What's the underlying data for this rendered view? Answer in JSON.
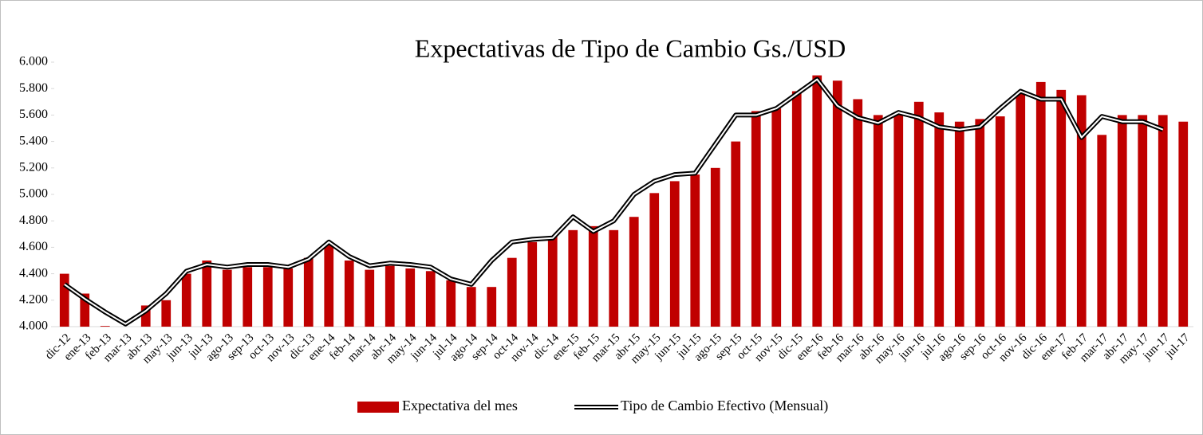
{
  "chart_data": {
    "type": "bar-line",
    "title": "Expectativas de Tipo de Cambio Gs./USD",
    "categories": [
      "dic-12",
      "ene-13",
      "feb-13",
      "mar-13",
      "abr-13",
      "may-13",
      "jun-13",
      "jul-13",
      "ago-13",
      "sep-13",
      "oct-13",
      "nov-13",
      "dic-13",
      "ene-14",
      "feb-14",
      "mar-14",
      "abr-14",
      "may-14",
      "jun-14",
      "jul-14",
      "ago-14",
      "sep-14",
      "oct-14",
      "nov-14",
      "dic-14",
      "ene-15",
      "feb-15",
      "mar-15",
      "abr-15",
      "may-15",
      "jun-15",
      "jul-15",
      "ago-15",
      "sep-15",
      "oct-15",
      "nov-15",
      "dic-15",
      "ene-16",
      "feb-16",
      "mar-16",
      "abr-16",
      "may-16",
      "jun-16",
      "jul-16",
      "ago-16",
      "sep-16",
      "oct-16",
      "nov-16",
      "dic-16",
      "ene-17",
      "feb-17",
      "mar-17",
      "abr-17",
      "may-17",
      "jun-17",
      "jul-17"
    ],
    "series": [
      {
        "name": "Expectativa del mes",
        "type": "bar",
        "color": "#c00000",
        "values": [
          4400,
          4250,
          4005,
          null,
          4160,
          4200,
          4400,
          4500,
          4430,
          4450,
          4450,
          4440,
          4520,
          4630,
          4500,
          4430,
          4460,
          4440,
          4420,
          4350,
          4300,
          4300,
          4520,
          4640,
          4680,
          4730,
          4760,
          4730,
          4830,
          5010,
          5100,
          5150,
          5200,
          5400,
          5630,
          5650,
          5780,
          5900,
          5860,
          5720,
          5600,
          5600,
          5700,
          5620,
          5550,
          5570,
          5590,
          5760,
          5850,
          5790,
          5750,
          5450,
          5600,
          5600,
          5600,
          5550
        ]
      },
      {
        "name": "Tipo de Cambio Efectivo (Mensual)",
        "type": "line",
        "color": "#000000",
        "values": [
          4320,
          4210,
          4110,
          4020,
          4120,
          4250,
          4420,
          4470,
          4450,
          4470,
          4470,
          4450,
          4510,
          4640,
          4530,
          4460,
          4480,
          4470,
          4450,
          4360,
          4320,
          4500,
          4640,
          4660,
          4670,
          4830,
          4720,
          4800,
          5000,
          5100,
          5150,
          5160,
          5380,
          5600,
          5600,
          5650,
          5760,
          5870,
          5670,
          5580,
          5540,
          5620,
          5580,
          5510,
          5490,
          5510,
          5650,
          5780,
          5720,
          5720,
          5430,
          5590,
          5550,
          5550,
          5490,
          null
        ]
      }
    ],
    "ylim": [
      4000,
      6000
    ],
    "yticks": [
      {
        "value": 4000,
        "label": "4.000"
      },
      {
        "value": 4200,
        "label": "4.200"
      },
      {
        "value": 4400,
        "label": "4.400"
      },
      {
        "value": 4600,
        "label": "4.600"
      },
      {
        "value": 4800,
        "label": "4.800"
      },
      {
        "value": 5000,
        "label": "5.000"
      },
      {
        "value": 5200,
        "label": "5.200"
      },
      {
        "value": 5400,
        "label": "5.400"
      },
      {
        "value": 5600,
        "label": "5.600"
      },
      {
        "value": 5800,
        "label": "5.800"
      },
      {
        "value": 6000,
        "label": "6.000"
      }
    ],
    "legend": "bottom"
  }
}
